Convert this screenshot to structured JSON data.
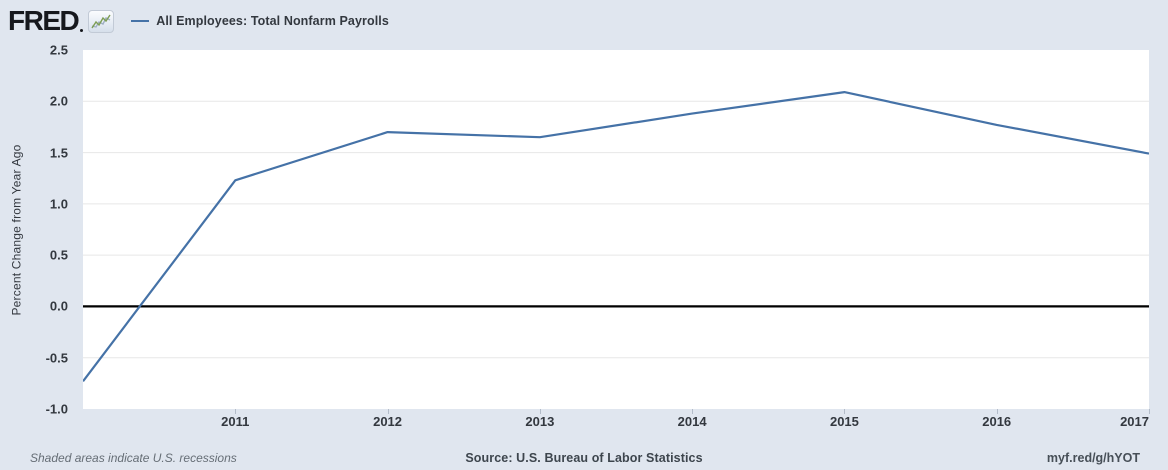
{
  "header": {
    "logo_text": "FRED",
    "series_label": "All Employees: Total Nonfarm Payrolls"
  },
  "colors": {
    "page_background": "#e0e6ef",
    "plot_background": "#ffffff",
    "series_line": "#4572a7",
    "gridline": "#e7e7e7",
    "zero_line": "#000000",
    "tick_mark": "#b3bcc9",
    "axis_text": "#33383f"
  },
  "chart_data": {
    "type": "line",
    "title": "All Employees: Total Nonfarm Payrolls",
    "xlabel": "",
    "ylabel": "Percent Change from Year Ago",
    "x": [
      2010,
      2011,
      2012,
      2013,
      2014,
      2015,
      2016,
      2017
    ],
    "values": [
      -0.73,
      1.23,
      1.7,
      1.65,
      1.88,
      2.09,
      1.77,
      1.49
    ],
    "xlim": [
      2010,
      2017
    ],
    "ylim": [
      -1.0,
      2.5
    ],
    "yticks": [
      2.5,
      2.0,
      1.5,
      1.0,
      0.5,
      0.0,
      -0.5,
      -1.0
    ],
    "ytick_labels": [
      "2.5",
      "2.0",
      "1.5",
      "1.0",
      "0.5",
      "0.0",
      "-0.5",
      "-1.0"
    ],
    "xticks": [
      2011,
      2012,
      2013,
      2014,
      2015,
      2016,
      2017
    ],
    "xtick_labels": [
      "2011",
      "2012",
      "2013",
      "2014",
      "2015",
      "2016",
      "2017"
    ],
    "zero_line_value": 0.0,
    "grid": "horizontal-only",
    "legend_position": "top-left",
    "line_color": "#4572a7"
  },
  "footer": {
    "recession_note": "Shaded areas indicate U.S. recessions",
    "source": "Source: U.S. Bureau of Labor Statistics",
    "short_url": "myf.red/g/hYOT"
  }
}
